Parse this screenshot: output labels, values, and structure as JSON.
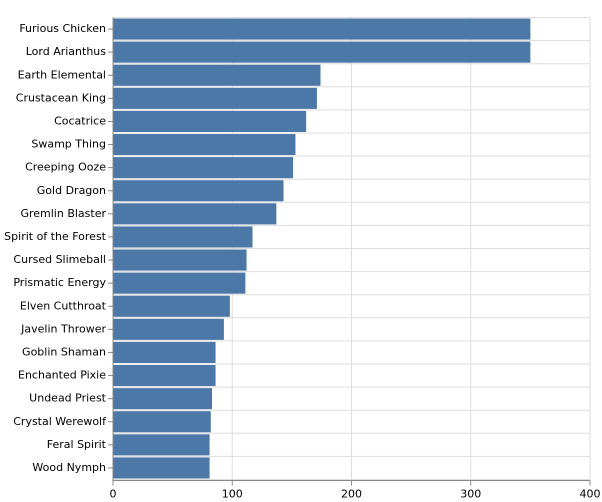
{
  "chart_data": {
    "type": "bar",
    "orientation": "horizontal",
    "color": "#4c78a8",
    "categories": [
      "Furious Chicken",
      "Lord Arianthus",
      "Earth Elemental",
      "Crustacean King",
      "Cocatrice",
      "Swamp Thing",
      "Creeping Ooze",
      "Gold Dragon",
      "Gremlin Blaster",
      "Spirit of the Forest",
      "Cursed Slimeball",
      "Prismatic Energy",
      "Elven Cutthroat",
      "Javelin Thrower",
      "Goblin Shaman",
      "Enchanted Pixie",
      "Undead Priest",
      "Crystal Werewolf",
      "Feral Spirit",
      "Wood Nymph"
    ],
    "values": [
      350,
      350,
      174,
      171,
      162,
      153,
      151,
      143,
      137,
      117,
      112,
      111,
      98,
      93,
      86,
      86,
      83,
      82,
      81,
      81
    ],
    "xlim": [
      0,
      400
    ],
    "xticks": [
      0,
      100,
      200,
      300,
      400
    ],
    "grid": true
  }
}
